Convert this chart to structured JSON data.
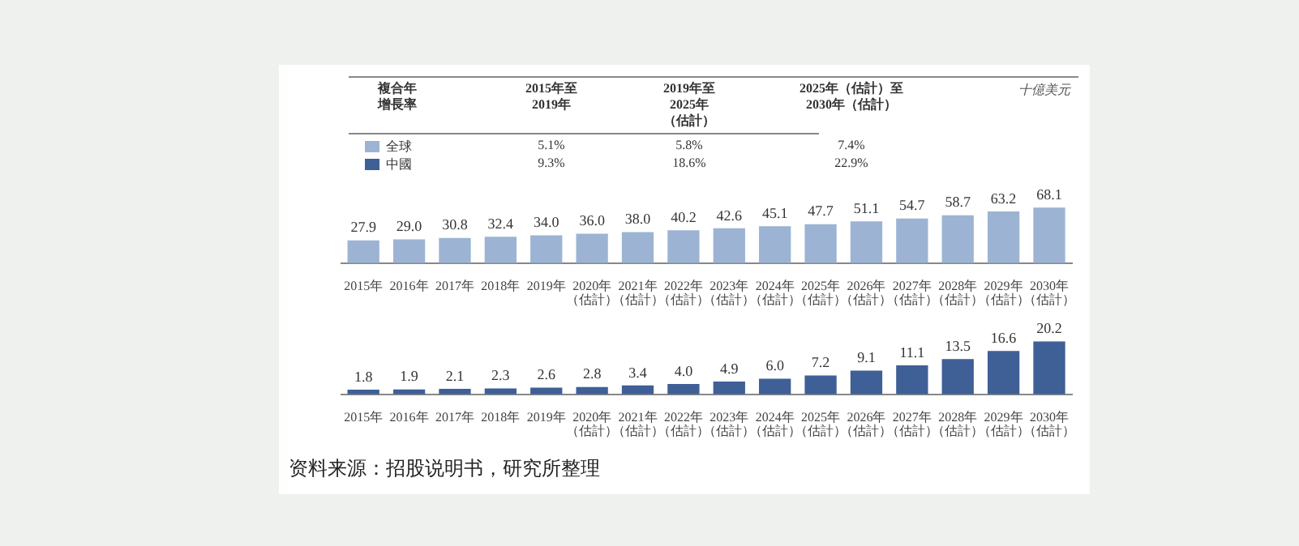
{
  "chart_data": [
    {
      "type": "bar",
      "legend": "top left",
      "categories": [
        "2015年",
        "2016年",
        "2017年",
        "2018年",
        "2019年",
        "2020年（估計）",
        "2021年（估計）",
        "2022年（估計）",
        "2023年（估計）",
        "2024年（估計）",
        "2025年（估計）",
        "2026年（估計）",
        "2027年（估計）",
        "2028年（估計）",
        "2029年（估計）",
        "2030年（估計）"
      ],
      "series": [
        {
          "name": "全球",
          "color": "#9db3d4",
          "values": [
            27.9,
            29.0,
            30.8,
            32.4,
            34.0,
            36.0,
            38.0,
            40.2,
            42.6,
            45.1,
            47.7,
            51.1,
            54.7,
            58.7,
            63.2,
            68.1
          ],
          "value_labels": [
            "27.9",
            "29.0",
            "30.8",
            "32.4",
            "34.0",
            "36.0",
            "38.0",
            "40.2",
            "42.6",
            "45.1",
            "47.7",
            "51.1",
            "54.7",
            "58.7",
            "63.2",
            "68.1"
          ]
        }
      ],
      "annotations": [
        "十億美元",
        "複合年增長率",
        "2015年至2019年",
        "2019年至2025年（估計）",
        "2025年（估計）至2030年（估計）",
        "5.1%",
        "5.8%",
        "7.4%",
        "9.3%",
        "18.6%",
        "22.9%"
      ]
    },
    {
      "type": "bar",
      "legend": "top left",
      "categories": [
        "2015年",
        "2016年",
        "2017年",
        "2018年",
        "2019年",
        "2020年（估計）",
        "2021年（估計）",
        "2022年（估計）",
        "2023年（估計）",
        "2024年（估計）",
        "2025年（估計）",
        "2026年（估計）",
        "2027年（估計）",
        "2028年（估計）",
        "2029年（估計）",
        "2030年（估計）"
      ],
      "series": [
        {
          "name": "中國",
          "color": "#3f5f97",
          "values": [
            1.8,
            1.9,
            2.1,
            2.3,
            2.6,
            2.8,
            3.4,
            4.0,
            4.9,
            6.0,
            7.2,
            9.1,
            11.1,
            13.5,
            16.6,
            20.2
          ],
          "value_labels": [
            "1.8",
            "1.9",
            "2.1",
            "2.3",
            "2.6",
            "2.8",
            "3.4",
            "4.0",
            "4.9",
            "6.0",
            "7.2",
            "9.1",
            "11.1",
            "13.5",
            "16.6",
            "20.2"
          ]
        }
      ],
      "annotations": [
        "资料来源：招股说明书，研究所整理"
      ]
    }
  ]
}
